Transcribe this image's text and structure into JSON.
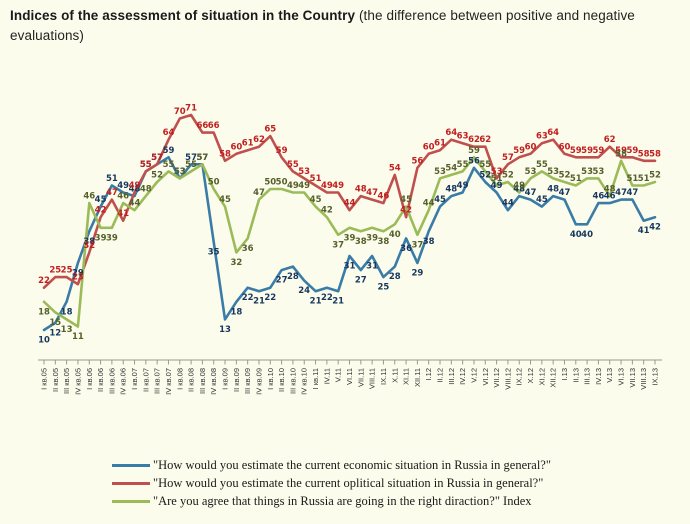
{
  "title": {
    "bold": "Indices of the assessment of situation in the Country",
    "normal": " (the difference between positive and negative evaluations)"
  },
  "background_color": "#fcfcec",
  "chart_data": {
    "type": "line",
    "title": "Indices of the assessment of situation in the Country (the difference between positive and negative evaluations)",
    "xlabel": "",
    "ylabel": "",
    "ylim": [
      0,
      80
    ],
    "grid": false,
    "y_axis_shown": false,
    "data_labels_shown": true,
    "legend_position": "bottom",
    "categories": [
      "I кв.05",
      "II кв.05",
      "III кв.05",
      "IV кв.05",
      "I кв.06",
      "II кв.06",
      "III кв.06",
      "IV кв.06",
      "I кв.07",
      "II кв.07",
      "III кв.07",
      "IV кв.07",
      "I кв.08",
      "II кв.08",
      "III кв.08",
      "IV кв.08",
      "I кв.09",
      "II кв.09",
      "III кв.09",
      "IV кв.09",
      "I кв.10",
      "II кв.10",
      "III кв.10",
      "IV кв.10",
      "I кв.11",
      "IV.11",
      "V.11",
      "VI.11",
      "VII.11",
      "VIII.11",
      "IX.11",
      "X.11",
      "XI.11",
      "XII.11",
      "I.12",
      "II.12",
      "III.12",
      "IV.12",
      "V.12",
      "VI.12",
      "VII.12",
      "VIII.12",
      "IX.12",
      "X.12",
      "XI.12",
      "XII.12",
      "I.13",
      "II.13",
      "III.13",
      "IV.13",
      "V.13",
      "VI.13",
      "VII.13",
      "VIII.13",
      "IX.13"
    ],
    "series": [
      {
        "id": "economic",
        "name": "\"How would you estimate the current economic situation in Russia in general?\"",
        "color": "#3a7ca8",
        "label_color": "#17375e",
        "values": [
          10,
          12,
          18,
          29,
          38,
          45,
          51,
          49,
          48,
          55,
          57,
          59,
          53,
          57,
          57,
          35,
          13,
          18,
          22,
          21,
          22,
          27,
          28,
          24,
          21,
          22,
          21,
          31,
          27,
          31,
          25,
          28,
          36,
          29,
          38,
          45,
          48,
          49,
          56,
          52,
          49,
          44,
          48,
          47,
          45,
          48,
          47,
          40,
          40,
          46,
          46,
          47,
          47,
          41,
          42
        ]
      },
      {
        "id": "political",
        "name": "\"How would you estimate the current oplitical situation in Russia in general?\"",
        "color": "#c0504d",
        "label_color": "#c02020",
        "values": [
          22,
          25,
          25,
          23,
          32,
          42,
          47,
          41,
          49,
          55,
          57,
          64,
          70,
          71,
          66,
          66,
          58,
          60,
          61,
          62,
          65,
          59,
          55,
          53,
          51,
          49,
          49,
          44,
          48,
          47,
          46,
          54,
          42,
          56,
          60,
          61,
          64,
          63,
          62,
          62,
          53,
          57,
          59,
          60,
          63,
          64,
          60,
          59,
          59,
          59,
          62,
          59,
          59,
          58,
          58
        ]
      },
      {
        "id": "right-direction",
        "name": "\"Are you agree that things in Russia are going in the right diraction?\" Index",
        "color": "#9bbb59",
        "label_color": "#55602a",
        "values": [
          18,
          15,
          13,
          11,
          46,
          39,
          39,
          46,
          44,
          48,
          52,
          55,
          53,
          55,
          57,
          50,
          45,
          32,
          36,
          47,
          50,
          50,
          49,
          49,
          45,
          42,
          37,
          39,
          38,
          39,
          38,
          40,
          45,
          37,
          44,
          53,
          54,
          55,
          59,
          55,
          51,
          52,
          49,
          53,
          55,
          53,
          52,
          51,
          53,
          53,
          48,
          58,
          51,
          51,
          52
        ]
      }
    ]
  }
}
